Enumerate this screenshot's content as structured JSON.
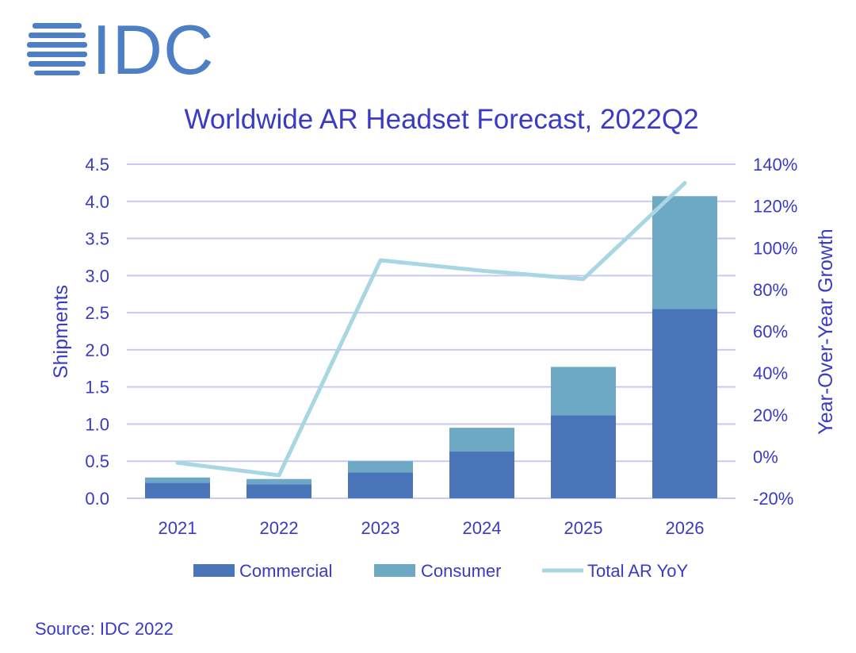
{
  "logo": {
    "text": "IDC"
  },
  "source": "Source: IDC 2022",
  "colors": {
    "text": "#3a3ac4",
    "grid": "#c9c9f2",
    "commercial": "#4a74b8",
    "consumer": "#6da9c4",
    "yoy": "#a8d6e2",
    "logo": "#4d7fc4"
  },
  "chart_data": {
    "type": "bar",
    "stacked": true,
    "title": "Worldwide AR Headset Forecast, 2022Q2",
    "xlabel": "",
    "ylabel": "Shipments",
    "y2label": "Year-Over-Year Growth",
    "categories": [
      "2021",
      "2022",
      "2023",
      "2024",
      "2025",
      "2026"
    ],
    "ylim": [
      0,
      4.5
    ],
    "yticks": [
      "0.0",
      "0.5",
      "1.0",
      "1.5",
      "2.0",
      "2.5",
      "3.0",
      "3.5",
      "4.0",
      "4.5"
    ],
    "y2lim": [
      -20,
      140
    ],
    "y2ticks": [
      "-20%",
      "0%",
      "20%",
      "40%",
      "60%",
      "80%",
      "100%",
      "120%",
      "140%"
    ],
    "series": [
      {
        "name": "Commercial",
        "type": "bar",
        "values": [
          0.21,
          0.19,
          0.35,
          0.63,
          1.12,
          2.55
        ]
      },
      {
        "name": "Consumer",
        "type": "bar",
        "values": [
          0.07,
          0.07,
          0.15,
          0.32,
          0.65,
          1.52
        ]
      },
      {
        "name": "Total AR YoY",
        "type": "line",
        "axis": "right",
        "values": [
          -3,
          -9,
          94,
          89,
          85,
          131
        ]
      }
    ],
    "legend_position": "bottom"
  }
}
